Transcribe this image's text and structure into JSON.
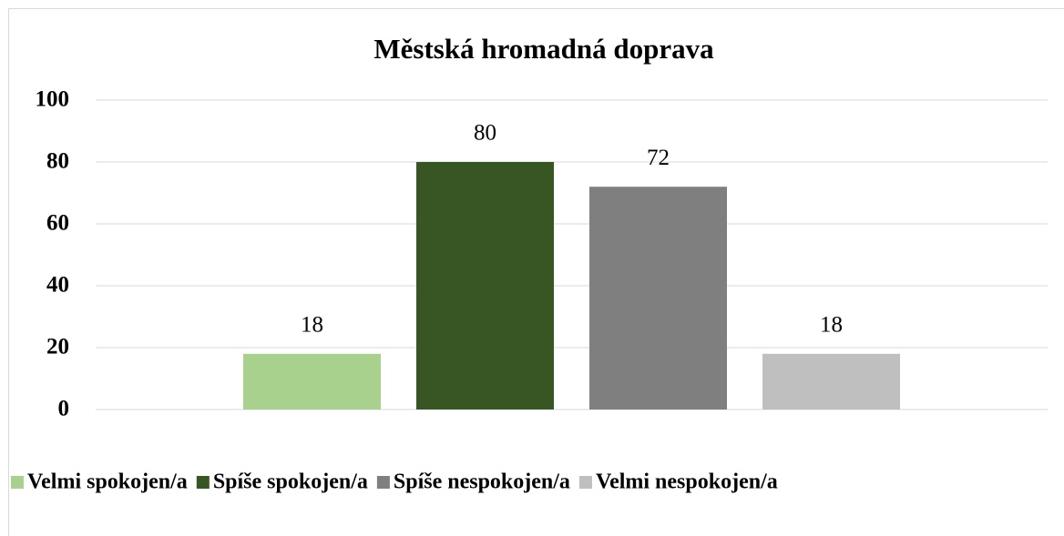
{
  "chart_data": {
    "type": "bar",
    "title": "Městská hromadná doprava",
    "categories": [
      null
    ],
    "series": [
      {
        "name": "Velmi spokojen/a",
        "color": "#a9d18e",
        "values": [
          18
        ]
      },
      {
        "name": "Spíše spokojen/a",
        "color": "#375623",
        "values": [
          80
        ]
      },
      {
        "name": "Spíše nespokojen/a",
        "color": "#7f7f7f",
        "values": [
          72
        ]
      },
      {
        "name": "Velmi nespokojen/a",
        "color": "#bfbfbf",
        "values": [
          18
        ]
      }
    ],
    "ylim": [
      0,
      100
    ],
    "yticks": [
      0,
      20,
      40,
      60,
      80,
      100
    ],
    "grid": true,
    "legend": "bottom"
  }
}
